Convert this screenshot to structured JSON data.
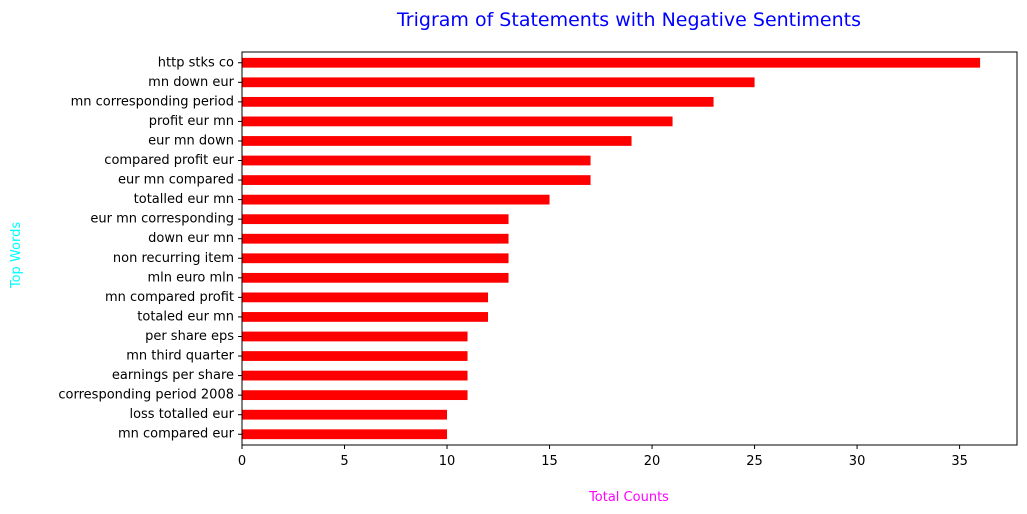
{
  "chart_data": {
    "type": "bar",
    "orientation": "horizontal",
    "title": "Trigram of Statements with Negative Sentiments",
    "xlabel": "Total Counts",
    "ylabel": "Top Words",
    "categories": [
      "http stks co",
      "mn down eur",
      "mn corresponding period",
      "profit eur mn",
      "eur mn down",
      "compared profit eur",
      "eur mn compared",
      "totalled eur mn",
      "eur mn corresponding",
      "down eur mn",
      "non recurring item",
      "mln euro mln",
      "mn compared profit",
      "totaled eur mn",
      "per share eps",
      "mn third quarter",
      "earnings per share",
      "corresponding period 2008",
      "loss totalled eur",
      "mn compared eur"
    ],
    "values": [
      36,
      25,
      23,
      21,
      19,
      17,
      17,
      15,
      13,
      13,
      13,
      13,
      12,
      12,
      11,
      11,
      11,
      11,
      10,
      10
    ],
    "xlim": [
      0,
      37.8
    ],
    "xticks": [
      0,
      5,
      10,
      15,
      20,
      25,
      30,
      35
    ],
    "grid": false,
    "colors": {
      "bar": "#ff0000",
      "title": "#0000ff",
      "xlabel": "#ff00ff",
      "ylabel": "#00ffff",
      "axis": "#000000"
    }
  }
}
